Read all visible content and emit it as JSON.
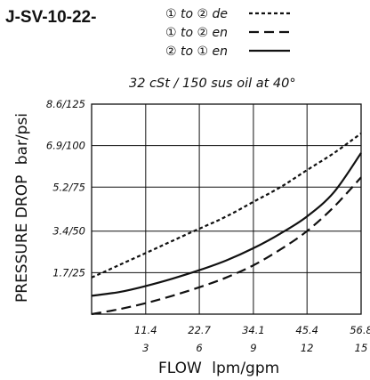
{
  "chart_data": {
    "type": "line",
    "title": "J-SV-10-22-",
    "subtitle": "32 cSt / 150 sus oil at 40°",
    "xlabel": "FLOW",
    "xlabel_units": "lpm/gpm",
    "ylabel": "PRESSURE DROP",
    "ylabel_units": "bar/psi",
    "xlim": [
      0,
      56.8
    ],
    "ylim": [
      0,
      8.6
    ],
    "grid": true,
    "legend_position": "top-right",
    "x_ticks": [
      {
        "value": 11.4,
        "primary": "11.4",
        "secondary": "3"
      },
      {
        "value": 22.7,
        "primary": "22.7",
        "secondary": "6"
      },
      {
        "value": 34.1,
        "primary": "34.1",
        "secondary": "9"
      },
      {
        "value": 45.4,
        "primary": "45.4",
        "secondary": "12"
      },
      {
        "value": 56.8,
        "primary": "56.8",
        "secondary": "15"
      }
    ],
    "y_ticks": [
      {
        "value": 1.7,
        "label": "1.7/25"
      },
      {
        "value": 3.4,
        "label": "3.4/50"
      },
      {
        "value": 5.2,
        "label": "5.2/75"
      },
      {
        "value": 6.9,
        "label": "6.9/100"
      },
      {
        "value": 8.6,
        "label": "8.6/125"
      }
    ],
    "series": [
      {
        "name": "① to ② de",
        "style": "dotted",
        "x": [
          0,
          5.7,
          11.4,
          17.0,
          22.7,
          28.4,
          34.1,
          39.8,
          45.4,
          51.1,
          56.8
        ],
        "y": [
          1.5,
          2.0,
          2.5,
          3.0,
          3.5,
          4.0,
          4.6,
          5.2,
          5.9,
          6.6,
          7.4
        ]
      },
      {
        "name": "① to ② en",
        "style": "dashed",
        "x": [
          0,
          5.7,
          11.4,
          17.0,
          22.7,
          28.4,
          34.1,
          39.8,
          45.4,
          51.1,
          56.8
        ],
        "y": [
          0,
          0.2,
          0.45,
          0.75,
          1.1,
          1.5,
          2.0,
          2.65,
          3.4,
          4.4,
          5.6
        ]
      },
      {
        "name": "② to ① en",
        "style": "solid",
        "x": [
          0,
          5.7,
          11.4,
          17.0,
          22.7,
          28.4,
          34.1,
          39.8,
          45.4,
          51.1,
          56.8
        ],
        "y": [
          0.75,
          0.9,
          1.15,
          1.45,
          1.8,
          2.2,
          2.7,
          3.3,
          4.0,
          5.0,
          6.6
        ]
      }
    ]
  }
}
